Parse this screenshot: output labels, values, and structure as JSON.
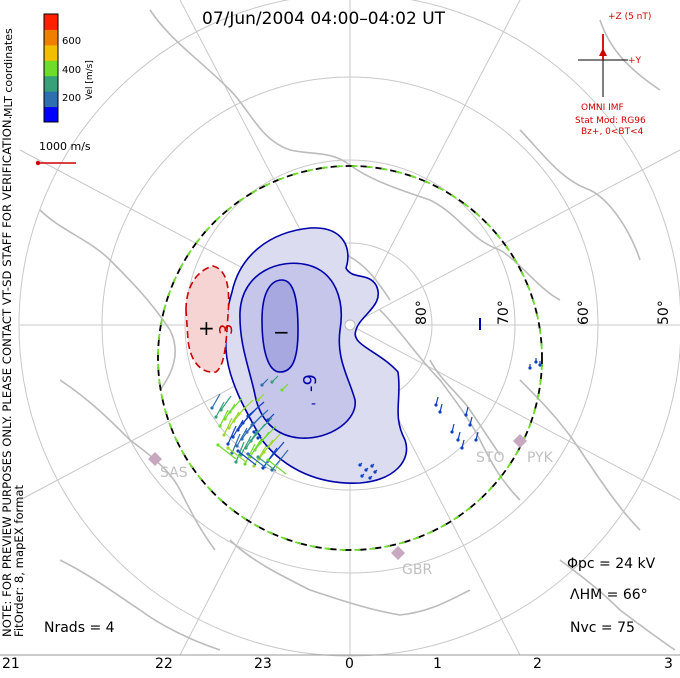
{
  "title": "07/Jun/2004 04:00–04:02 UT",
  "colorbar": {
    "label": "Vel [m/s]",
    "ticks": [
      "600",
      "400",
      "200"
    ],
    "colors": [
      "#0000ff",
      "#2f6fb0",
      "#37a17a",
      "#6fdc2b",
      "#f0c000",
      "#f07f00",
      "#ff2000"
    ]
  },
  "side_text": {
    "mlt": "MLT coordinates",
    "note": "NOTE: FOR PREVIEW PURPOSES ONLY. PLEASE CONTACT VT-SD STAFF FOR VERIFICATION.",
    "fit": "FitOrder: 8,  mapEX format"
  },
  "scale_vector": "1000 m/s",
  "imf": {
    "z_label": "+Z (5 nT)",
    "y_label": "+Y",
    "source": "OMNI IMF",
    "model": "Stat Mod: RG96",
    "condition": "Bz+, 0<BT<4"
  },
  "latitude_labels": [
    "80°",
    "70°",
    "60°",
    "50°"
  ],
  "mlt_labels": [
    "21",
    "22",
    "23",
    "0",
    "1",
    "2",
    "3"
  ],
  "stations": [
    "SAS",
    "STO",
    "PYK",
    "GBR"
  ],
  "contours": {
    "plus": "+",
    "minus": "−",
    "pos_value": "3",
    "neg_value": "-9",
    "neg_value2": "-"
  },
  "stats": {
    "phi_pc": "Φpc = 24 kV",
    "lambda_hm": "ΛHM = 66°",
    "n_vc": "Nvc = 75",
    "n_rads": "Nrads = 4"
  },
  "colors": {
    "coast": "#bcbcbc",
    "grid": "#c8c8c8",
    "pos_contour": "#cc0000",
    "neg_contour": "#0000aa",
    "neg_fill": "#dcdcf0",
    "neg_fill_inner": "#c6c6ea",
    "neg_fill_core": "#a8a8e0",
    "pos_fill": "#f6d4d4",
    "hmb_dash": "#6fdc2b"
  }
}
